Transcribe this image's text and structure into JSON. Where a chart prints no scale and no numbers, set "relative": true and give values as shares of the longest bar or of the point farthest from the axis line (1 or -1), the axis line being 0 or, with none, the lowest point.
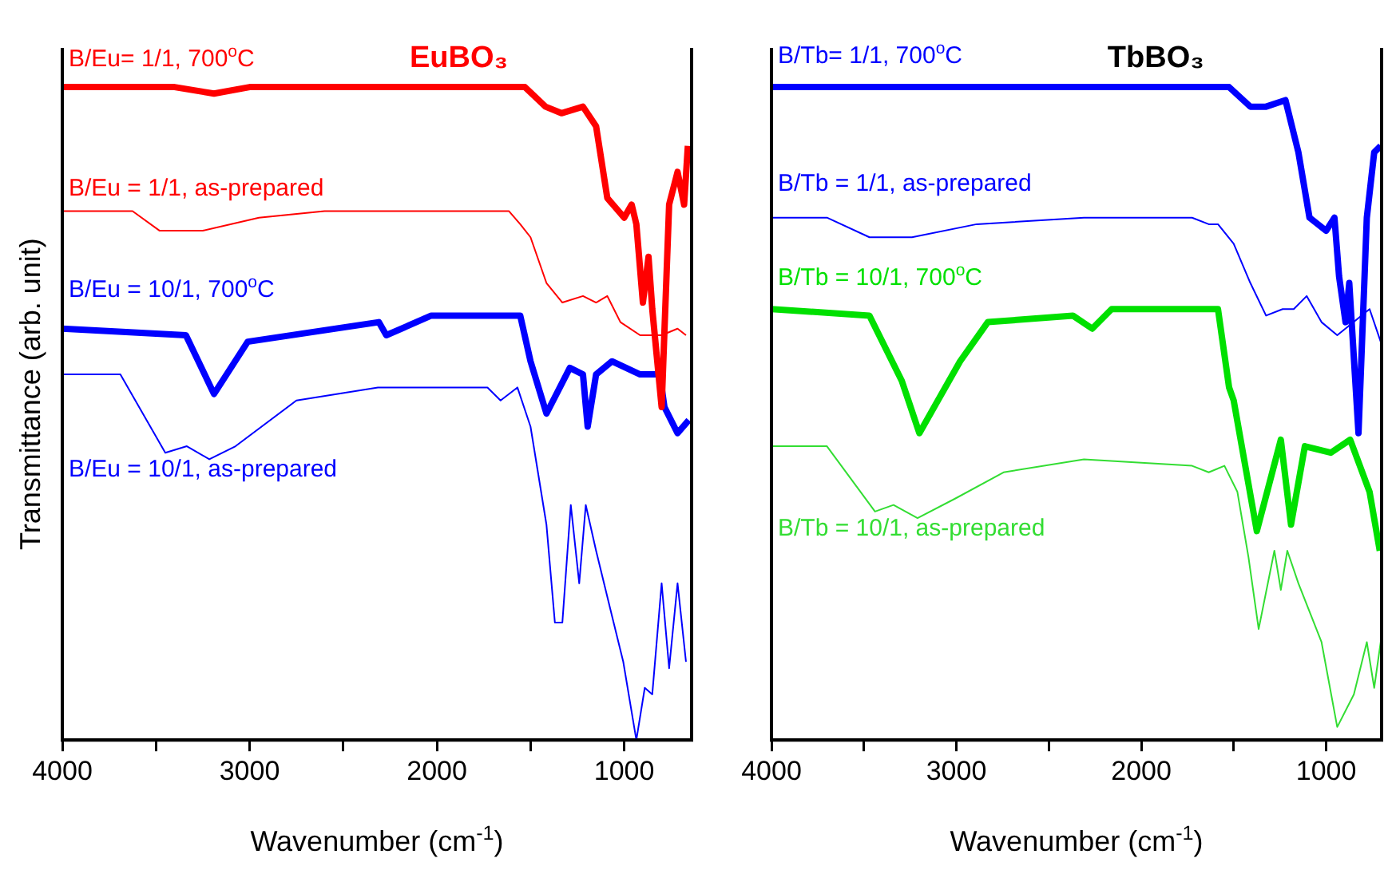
{
  "chart_data": [
    {
      "type": "line",
      "title": "EuBO₃",
      "xlabel": "Wavenumber (cm$^{-1}$)",
      "ylabel": "Transmittance (arb. unit)",
      "relative": true,
      "xlim": [
        4000,
        640
      ],
      "xticks": [
        4000,
        {
          "value": 3500,
          "label": null
        },
        3000,
        {
          "value": 2500,
          "label": null
        },
        2000,
        {
          "value": 1500,
          "label": null
        },
        1000
      ],
      "tick_labels": "x",
      "grid": false,
      "legend": false,
      "marker": "none",
      "line_style": "solid",
      "series": [
        {
          "name": "B/Eu= 1/1, 700$^{o}$C",
          "color": "#ff0000",
          "x": [
            4000,
            3400,
            3190,
            3000,
            1530,
            1420,
            1335,
            1220,
            1150,
            1090,
            1000,
            960,
            935,
            900,
            870,
            850,
            800,
            760,
            715,
            680,
            660
          ],
          "values": [
            1.0,
            1.0,
            0.99,
            1.0,
            1.0,
            0.97,
            0.96,
            0.97,
            0.94,
            0.83,
            0.8,
            0.82,
            0.79,
            0.67,
            0.74,
            0.66,
            0.51,
            0.82,
            0.87,
            0.82,
            0.91
          ]
        },
        {
          "name": "B/Eu = 1/1, as-prepared",
          "color": "#ff0000",
          "x": [
            4000,
            3625,
            3480,
            3250,
            2950,
            2600,
            1615,
            1555,
            1500,
            1415,
            1330,
            1220,
            1150,
            1090,
            1020,
            915,
            800,
            715,
            670
          ],
          "values": [
            0.81,
            0.81,
            0.78,
            0.78,
            0.8,
            0.81,
            0.81,
            0.79,
            0.77,
            0.7,
            0.67,
            0.68,
            0.67,
            0.68,
            0.64,
            0.62,
            0.62,
            0.63,
            0.62
          ]
        },
        {
          "name": "B/Eu = 10/1, 700$^{o}$C",
          "color": "#0000ff",
          "x": [
            4000,
            3340,
            3190,
            3010,
            2310,
            2270,
            2030,
            1555,
            1500,
            1415,
            1290,
            1220,
            1195,
            1150,
            1065,
            915,
            810,
            785,
            715,
            655
          ],
          "values": [
            0.63,
            0.62,
            0.53,
            0.61,
            0.64,
            0.62,
            0.65,
            0.65,
            0.58,
            0.5,
            0.57,
            0.56,
            0.48,
            0.56,
            0.58,
            0.56,
            0.56,
            0.51,
            0.47,
            0.49
          ]
        },
        {
          "name": "B/Eu = 10/1, as-prepared",
          "color": "#0000ff",
          "x": [
            4000,
            3690,
            3450,
            3335,
            3215,
            3075,
            2750,
            2315,
            1730,
            1660,
            1570,
            1500,
            1415,
            1370,
            1330,
            1285,
            1240,
            1205,
            1150,
            1065,
            1005,
            935,
            890,
            850,
            800,
            760,
            715,
            670
          ],
          "values": [
            0.56,
            0.56,
            0.44,
            0.45,
            0.43,
            0.45,
            0.52,
            0.54,
            0.54,
            0.52,
            0.54,
            0.48,
            0.33,
            0.18,
            0.18,
            0.36,
            0.24,
            0.36,
            0.29,
            0.19,
            0.12,
            0.0,
            0.08,
            0.07,
            0.24,
            0.11,
            0.24,
            0.12
          ]
        }
      ]
    },
    {
      "type": "line",
      "title": "TbBO₃",
      "xlabel": "Wavenumber (cm$^{-1}$)",
      "relative": true,
      "xlim": [
        4000,
        700
      ],
      "xticks": [
        4000,
        {
          "value": 3500,
          "label": null
        },
        3000,
        {
          "value": 2500,
          "label": null
        },
        2000,
        {
          "value": 1500,
          "label": null
        },
        1000
      ],
      "tick_labels": "x",
      "grid": false,
      "legend": false,
      "marker": "none",
      "line_style": "solid",
      "series": [
        {
          "name": "B/Tb= 1/1, 700$^{o}$C",
          "color": "#0000ff",
          "x": [
            4000,
            3470,
            1525,
            1410,
            1325,
            1220,
            1150,
            1090,
            1000,
            955,
            930,
            895,
            875,
            825,
            780,
            740,
            705
          ],
          "values": [
            1.0,
            1.0,
            1.0,
            0.97,
            0.97,
            0.98,
            0.9,
            0.8,
            0.78,
            0.8,
            0.71,
            0.64,
            0.7,
            0.47,
            0.8,
            0.9,
            0.91
          ]
        },
        {
          "name": "B/Tb = 1/1, as-prepared",
          "color": "#0000ff",
          "x": [
            4000,
            3700,
            3470,
            3240,
            2890,
            2310,
            1725,
            1635,
            1585,
            1500,
            1410,
            1325,
            1235,
            1175,
            1105,
            1025,
            940,
            765,
            705
          ],
          "values": [
            0.8,
            0.8,
            0.77,
            0.77,
            0.79,
            0.8,
            0.8,
            0.79,
            0.79,
            0.76,
            0.7,
            0.65,
            0.66,
            0.66,
            0.68,
            0.64,
            0.62,
            0.66,
            0.61
          ]
        },
        {
          "name": "B/Tb = 10/1, 700$^{o}$C",
          "color": "#00e000",
          "x": [
            4000,
            3470,
            3295,
            3200,
            2980,
            2830,
            2370,
            2265,
            2160,
            1585,
            1525,
            1500,
            1375,
            1245,
            1190,
            1115,
            975,
            870,
            765,
            710
          ],
          "values": [
            0.66,
            0.65,
            0.55,
            0.47,
            0.58,
            0.64,
            0.65,
            0.63,
            0.66,
            0.66,
            0.54,
            0.52,
            0.32,
            0.46,
            0.33,
            0.45,
            0.44,
            0.46,
            0.38,
            0.29
          ]
        },
        {
          "name": "B/Tb = 10/1, as-prepared",
          "color": "#33dd33",
          "x": [
            4000,
            3700,
            3440,
            3340,
            3210,
            3005,
            2745,
            2310,
            1725,
            1635,
            1550,
            1480,
            1420,
            1365,
            1280,
            1245,
            1210,
            1150,
            1025,
            940,
            850,
            780,
            740,
            705
          ],
          "values": [
            0.45,
            0.45,
            0.35,
            0.36,
            0.34,
            0.37,
            0.41,
            0.43,
            0.42,
            0.41,
            0.42,
            0.38,
            0.28,
            0.17,
            0.29,
            0.23,
            0.29,
            0.24,
            0.15,
            0.02,
            0.07,
            0.15,
            0.08,
            0.15
          ]
        }
      ]
    }
  ]
}
